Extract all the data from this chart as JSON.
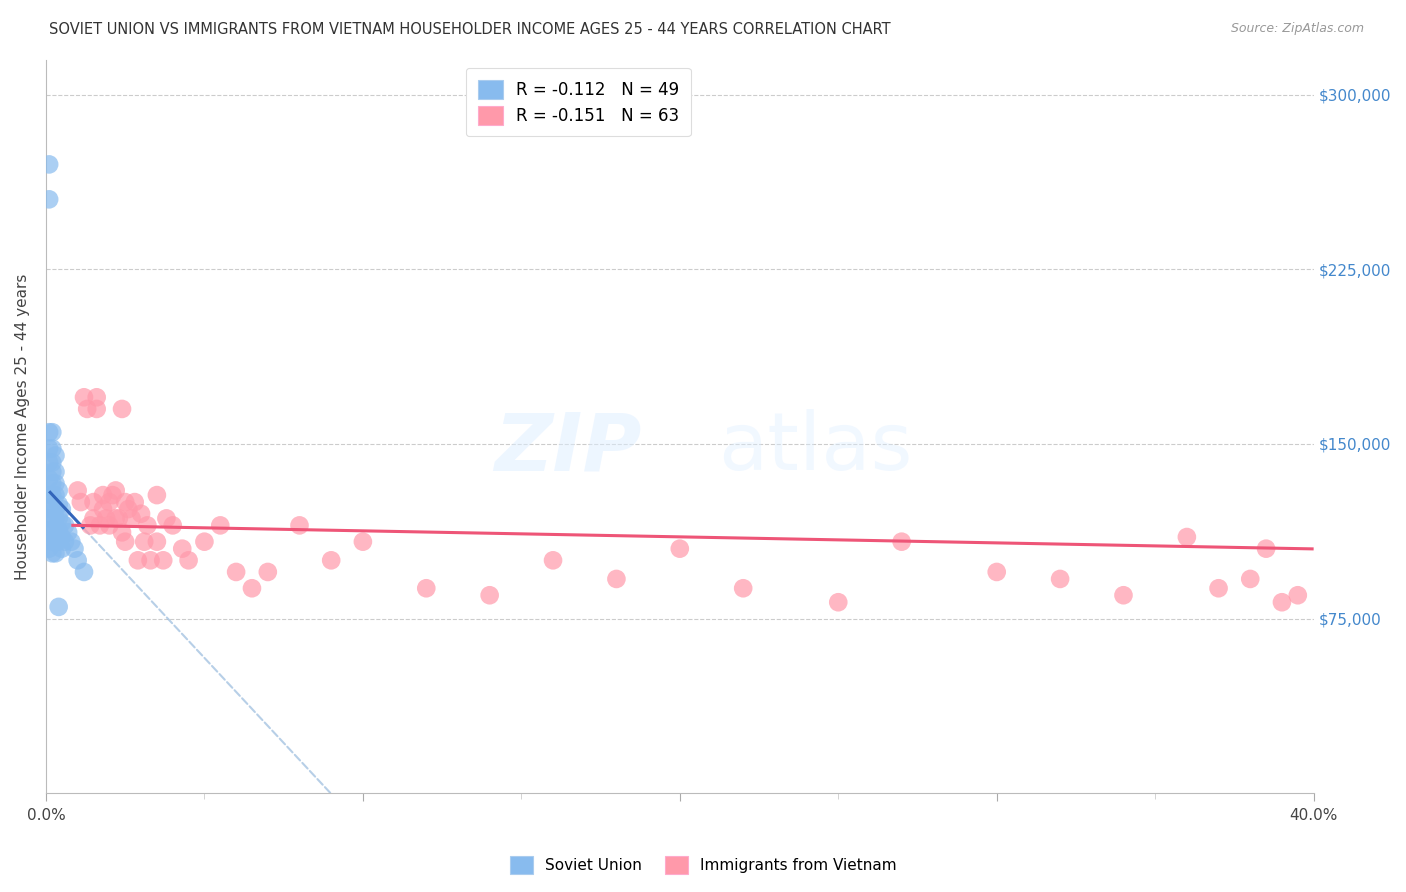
{
  "title": "SOVIET UNION VS IMMIGRANTS FROM VIETNAM HOUSEHOLDER INCOME AGES 25 - 44 YEARS CORRELATION CHART",
  "source": "Source: ZipAtlas.com",
  "ylabel": "Householder Income Ages 25 - 44 years",
  "y_tick_labels": [
    "$75,000",
    "$150,000",
    "$225,000",
    "$300,000"
  ],
  "y_tick_values": [
    75000,
    150000,
    225000,
    300000
  ],
  "xlim": [
    0.0,
    0.4
  ],
  "ylim": [
    0,
    315000
  ],
  "legend_entry1": "R = -0.112   N = 49",
  "legend_entry2": "R = -0.151   N = 63",
  "legend_label1": "Soviet Union",
  "legend_label2": "Immigrants from Vietnam",
  "color_soviet": "#88BBEE",
  "color_vietnam": "#FF99AA",
  "color_soviet_line": "#3366BB",
  "color_vietnam_line": "#EE5577",
  "color_soviet_dashed": "#99BBDD",
  "background": "#FFFFFF",
  "soviet_x": [
    0.001,
    0.001,
    0.001,
    0.001,
    0.001,
    0.001,
    0.001,
    0.001,
    0.001,
    0.001,
    0.001,
    0.001,
    0.002,
    0.002,
    0.002,
    0.002,
    0.002,
    0.002,
    0.002,
    0.002,
    0.002,
    0.002,
    0.002,
    0.003,
    0.003,
    0.003,
    0.003,
    0.003,
    0.003,
    0.003,
    0.003,
    0.003,
    0.004,
    0.004,
    0.004,
    0.004,
    0.004,
    0.004,
    0.005,
    0.005,
    0.005,
    0.005,
    0.006,
    0.006,
    0.007,
    0.008,
    0.009,
    0.01,
    0.012
  ],
  "soviet_y": [
    270000,
    255000,
    155000,
    148000,
    142000,
    135000,
    128000,
    122000,
    118000,
    113000,
    109000,
    105000,
    155000,
    148000,
    142000,
    138000,
    133000,
    128000,
    123000,
    118000,
    113000,
    108000,
    103000,
    145000,
    138000,
    133000,
    128000,
    122000,
    118000,
    113000,
    108000,
    103000,
    130000,
    124000,
    118000,
    113000,
    108000,
    80000,
    122000,
    116000,
    110000,
    105000,
    115000,
    108000,
    112000,
    108000,
    105000,
    100000,
    95000
  ],
  "vietnam_x": [
    0.01,
    0.011,
    0.012,
    0.013,
    0.014,
    0.015,
    0.015,
    0.016,
    0.016,
    0.017,
    0.018,
    0.018,
    0.019,
    0.02,
    0.02,
    0.021,
    0.022,
    0.022,
    0.023,
    0.024,
    0.024,
    0.025,
    0.025,
    0.026,
    0.027,
    0.028,
    0.029,
    0.03,
    0.031,
    0.032,
    0.033,
    0.035,
    0.035,
    0.037,
    0.038,
    0.04,
    0.043,
    0.045,
    0.05,
    0.055,
    0.06,
    0.065,
    0.07,
    0.08,
    0.09,
    0.1,
    0.12,
    0.14,
    0.16,
    0.18,
    0.2,
    0.22,
    0.25,
    0.27,
    0.3,
    0.32,
    0.34,
    0.36,
    0.37,
    0.38,
    0.385,
    0.39,
    0.395
  ],
  "vietnam_y": [
    130000,
    125000,
    170000,
    165000,
    115000,
    125000,
    118000,
    170000,
    165000,
    115000,
    128000,
    122000,
    118000,
    125000,
    115000,
    128000,
    130000,
    118000,
    118000,
    165000,
    112000,
    125000,
    108000,
    122000,
    118000,
    125000,
    100000,
    120000,
    108000,
    115000,
    100000,
    128000,
    108000,
    100000,
    118000,
    115000,
    105000,
    100000,
    108000,
    115000,
    95000,
    88000,
    95000,
    115000,
    100000,
    108000,
    88000,
    85000,
    100000,
    92000,
    105000,
    88000,
    82000,
    108000,
    95000,
    92000,
    85000,
    110000,
    88000,
    92000,
    105000,
    82000,
    85000
  ]
}
